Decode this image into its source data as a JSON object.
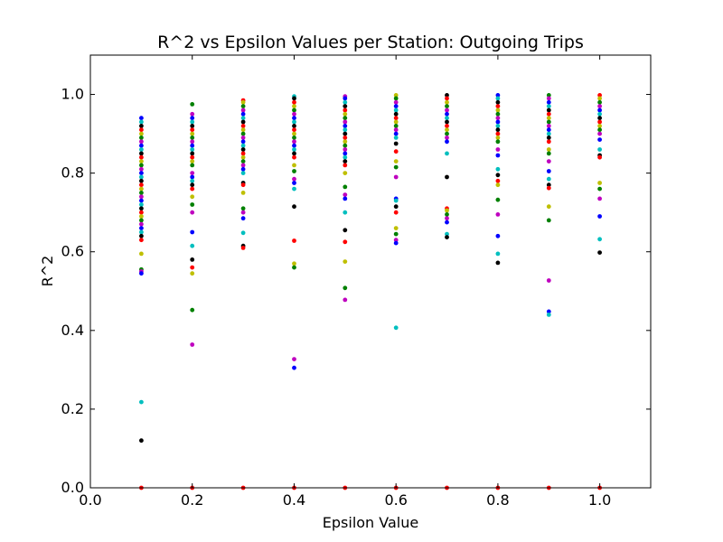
{
  "chart_data": {
    "type": "scatter",
    "title": "R^2 vs Epsilon Values per Station: Outgoing Trips",
    "xlabel": "Epsilon Value",
    "ylabel": "R^2",
    "xlim": [
      0.0,
      1.1
    ],
    "ylim": [
      0.0,
      1.1
    ],
    "xticks": [
      "0.0",
      "0.2",
      "0.4",
      "0.6",
      "0.8",
      "1.0"
    ],
    "yticks": [
      "0.0",
      "0.2",
      "0.4",
      "0.6",
      "0.8",
      "1.0"
    ],
    "grid": false,
    "legend": "none",
    "colors": [
      "#0000ff",
      "#008000",
      "#ff0000",
      "#00bfbf",
      "#bf00bf",
      "#bfbf00",
      "#000000"
    ],
    "points": [
      {
        "x": 0.1,
        "values": [
          0.94,
          0.93,
          0.92,
          0.91,
          0.9,
          0.89,
          0.88,
          0.87,
          0.86,
          0.85,
          0.84,
          0.83,
          0.82,
          0.81,
          0.8,
          0.79,
          0.78,
          0.77,
          0.76,
          0.75,
          0.74,
          0.73,
          0.72,
          0.71,
          0.7,
          0.69,
          0.68,
          0.67,
          0.66,
          0.65,
          0.64,
          0.63,
          0.595,
          0.555,
          0.55,
          0.545,
          0.218,
          0.12,
          0.0
        ]
      },
      {
        "x": 0.2,
        "values": [
          0.975,
          0.95,
          0.94,
          0.93,
          0.92,
          0.91,
          0.9,
          0.89,
          0.88,
          0.87,
          0.86,
          0.85,
          0.84,
          0.83,
          0.82,
          0.8,
          0.79,
          0.78,
          0.77,
          0.76,
          0.74,
          0.72,
          0.7,
          0.65,
          0.615,
          0.58,
          0.56,
          0.545,
          0.452,
          0.364,
          0.0
        ]
      },
      {
        "x": 0.3,
        "values": [
          0.985,
          0.98,
          0.97,
          0.96,
          0.95,
          0.94,
          0.93,
          0.92,
          0.91,
          0.9,
          0.89,
          0.88,
          0.87,
          0.86,
          0.85,
          0.84,
          0.83,
          0.82,
          0.81,
          0.8,
          0.775,
          0.77,
          0.75,
          0.71,
          0.7,
          0.685,
          0.648,
          0.615,
          0.61,
          0.0
        ]
      },
      {
        "x": 0.4,
        "values": [
          0.995,
          0.99,
          0.98,
          0.97,
          0.96,
          0.95,
          0.94,
          0.93,
          0.92,
          0.91,
          0.9,
          0.89,
          0.88,
          0.87,
          0.86,
          0.85,
          0.84,
          0.82,
          0.805,
          0.785,
          0.775,
          0.76,
          0.715,
          0.628,
          0.57,
          0.56,
          0.327,
          0.305,
          0.0
        ]
      },
      {
        "x": 0.5,
        "values": [
          0.995,
          0.99,
          0.98,
          0.97,
          0.96,
          0.95,
          0.94,
          0.93,
          0.92,
          0.91,
          0.9,
          0.89,
          0.88,
          0.87,
          0.86,
          0.85,
          0.84,
          0.83,
          0.82,
          0.8,
          0.765,
          0.745,
          0.735,
          0.7,
          0.655,
          0.625,
          0.575,
          0.508,
          0.478,
          0.0
        ]
      },
      {
        "x": 0.6,
        "values": [
          0.998,
          0.99,
          0.98,
          0.97,
          0.96,
          0.95,
          0.94,
          0.93,
          0.92,
          0.91,
          0.9,
          0.89,
          0.875,
          0.855,
          0.83,
          0.815,
          0.79,
          0.735,
          0.73,
          0.715,
          0.7,
          0.66,
          0.645,
          0.63,
          0.622,
          0.407,
          0.0
        ]
      },
      {
        "x": 0.7,
        "values": [
          0.998,
          0.99,
          0.98,
          0.97,
          0.96,
          0.95,
          0.94,
          0.93,
          0.92,
          0.91,
          0.9,
          0.89,
          0.88,
          0.85,
          0.79,
          0.71,
          0.705,
          0.695,
          0.685,
          0.675,
          0.645,
          0.637,
          0.0
        ]
      },
      {
        "x": 0.8,
        "values": [
          0.998,
          0.99,
          0.98,
          0.97,
          0.96,
          0.95,
          0.94,
          0.93,
          0.92,
          0.91,
          0.9,
          0.89,
          0.88,
          0.86,
          0.845,
          0.81,
          0.795,
          0.78,
          0.77,
          0.732,
          0.695,
          0.64,
          0.595,
          0.572,
          0.0
        ]
      },
      {
        "x": 0.9,
        "values": [
          0.998,
          0.99,
          0.98,
          0.97,
          0.96,
          0.95,
          0.94,
          0.93,
          0.92,
          0.91,
          0.9,
          0.89,
          0.88,
          0.86,
          0.85,
          0.83,
          0.805,
          0.785,
          0.77,
          0.762,
          0.715,
          0.68,
          0.527,
          0.448,
          0.44,
          0.0
        ]
      },
      {
        "x": 1.0,
        "values": [
          0.998,
          0.99,
          0.98,
          0.97,
          0.96,
          0.95,
          0.94,
          0.93,
          0.92,
          0.91,
          0.9,
          0.885,
          0.86,
          0.845,
          0.84,
          0.775,
          0.76,
          0.735,
          0.69,
          0.632,
          0.598,
          0.0
        ]
      }
    ]
  }
}
